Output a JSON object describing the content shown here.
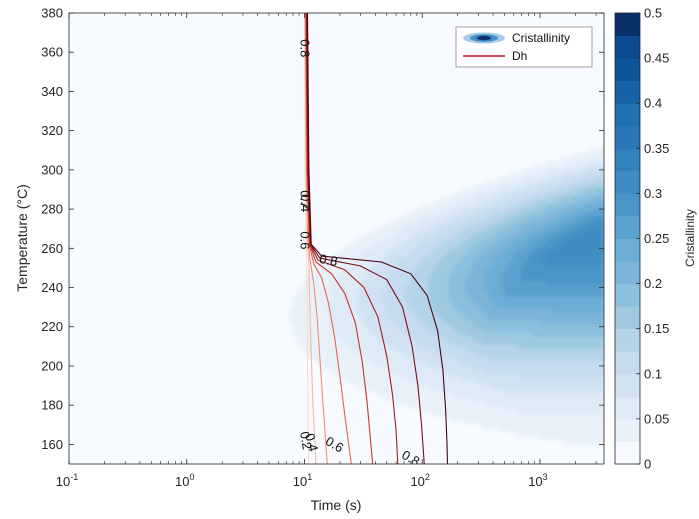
{
  "chart_data": {
    "type": "heatmap",
    "title": "",
    "xlabel": "Time (s)",
    "ylabel": "Temperature (°C)",
    "x_scale": "log",
    "xlim": [
      0.1,
      3500
    ],
    "ylim": [
      150,
      380
    ],
    "x_ticks": [
      {
        "value": 0.1,
        "base": "10",
        "exp": "-1"
      },
      {
        "value": 1,
        "base": "10",
        "exp": "0"
      },
      {
        "value": 10,
        "base": "10",
        "exp": "1"
      },
      {
        "value": 100,
        "base": "10",
        "exp": "2"
      },
      {
        "value": 1000,
        "base": "10",
        "exp": "3"
      }
    ],
    "y_ticks": [
      "160",
      "180",
      "200",
      "220",
      "240",
      "260",
      "280",
      "300",
      "320",
      "340",
      "360",
      "380"
    ],
    "grid": false,
    "legend": {
      "placement": "top-right",
      "entries": [
        {
          "name": "Cristallinity",
          "symbol": "filled-contour",
          "color": "#1f64a8"
        },
        {
          "name": "Dh",
          "symbol": "line",
          "color": "#b5121b"
        }
      ]
    },
    "colorbar": {
      "label": "Cristallinity",
      "range": [
        0,
        0.5
      ],
      "ticks": [
        "0",
        "0.05",
        "0.1",
        "0.15",
        "0.2",
        "0.25",
        "0.3",
        "0.35",
        "0.4",
        "0.45",
        "0.5"
      ],
      "levels": [
        0.025,
        0.05,
        0.075,
        0.1,
        0.125,
        0.15,
        0.175,
        0.2,
        0.225,
        0.25,
        0.275,
        0.3,
        0.325,
        0.35,
        0.375,
        0.4,
        0.425,
        0.45,
        0.475,
        0.5
      ],
      "colors": [
        "#f7fbff",
        "#e8f1fa",
        "#deebf7",
        "#d0e2f2",
        "#c6dbef",
        "#b5d4e9",
        "#9ecae1",
        "#8bbfdc",
        "#7cb5d8",
        "#6aaed6",
        "#5aa1cf",
        "#4a95c8",
        "#3f8dc4",
        "#3282bd",
        "#2a76b6",
        "#2171b5",
        "#1763a9",
        "#0f559c",
        "#0b4b8f",
        "#08306b"
      ]
    },
    "cristallinity_field": {
      "description_values": "peak cristallinity ~0.32 near T=270 C at t>=1000 s; nucleation front near t~2 s at T~210 C",
      "peak": {
        "time_s": 3000,
        "temperature_C": 268,
        "value": 0.32
      }
    },
    "dh_contours": {
      "levels": [
        "0.2",
        "0.4",
        "0.6",
        "0.8"
      ],
      "colors": [
        "#f8ddd2",
        "#f4b8a6",
        "#ee8d78",
        "#e1634f",
        "#c9372f",
        "#a51c22",
        "#7a0f18",
        "#4a0410"
      ],
      "curves": [
        {
          "level": 0.2,
          "points": [
            [
              10.0,
              380
            ],
            [
              10.1,
              300
            ],
            [
              10.3,
              262
            ],
            [
              10.4,
              252
            ],
            [
              10.5,
              240
            ],
            [
              10.6,
              220
            ],
            [
              10.6,
              200
            ],
            [
              10.7,
              180
            ],
            [
              10.8,
              160
            ],
            [
              10.9,
              150
            ]
          ]
        },
        {
          "level": 0.4,
          "points": [
            [
              10.1,
              380
            ],
            [
              10.3,
              300
            ],
            [
              10.6,
              262
            ],
            [
              10.9,
              252
            ],
            [
              11.0,
              240
            ],
            [
              11.2,
              220
            ],
            [
              11.5,
              200
            ],
            [
              11.8,
              180
            ],
            [
              12.3,
              160
            ],
            [
              12.5,
              150
            ]
          ]
        },
        {
          "level": 0.5,
          "points": [
            [
              10.2,
              380
            ],
            [
              10.4,
              300
            ],
            [
              10.8,
              262
            ],
            [
              11.3,
              252
            ],
            [
              12.0,
              242
            ],
            [
              12.8,
              225
            ],
            [
              13.5,
              205
            ],
            [
              14.2,
              185
            ],
            [
              15.0,
              165
            ],
            [
              15.6,
              150
            ]
          ]
        },
        {
          "level": 0.6,
          "points": [
            [
              10.3,
              380
            ],
            [
              10.5,
              300
            ],
            [
              11.0,
              262
            ],
            [
              12.0,
              252
            ],
            [
              14.0,
              245
            ],
            [
              16.0,
              232
            ],
            [
              18.0,
              215
            ],
            [
              20.0,
              195
            ],
            [
              22.0,
              175
            ],
            [
              24.0,
              158
            ],
            [
              25.0,
              150
            ]
          ]
        },
        {
          "level": 0.65,
          "points": [
            [
              10.3,
              380
            ],
            [
              10.6,
              300
            ],
            [
              11.1,
              262
            ],
            [
              12.5,
              253
            ],
            [
              17.0,
              247
            ],
            [
              22.0,
              237
            ],
            [
              27.0,
              222
            ],
            [
              31.0,
              202
            ],
            [
              34.0,
              182
            ],
            [
              36.0,
              165
            ],
            [
              38.0,
              150
            ]
          ]
        },
        {
          "level": 0.7,
          "points": [
            [
              10.4,
              380
            ],
            [
              10.7,
              300
            ],
            [
              11.2,
              262
            ],
            [
              13.0,
              254
            ],
            [
              22.0,
              249
            ],
            [
              32.0,
              240
            ],
            [
              42.0,
              225
            ],
            [
              50.0,
              205
            ],
            [
              56.0,
              185
            ],
            [
              60.0,
              167
            ],
            [
              62.0,
              150
            ]
          ]
        },
        {
          "level": 0.75,
          "points": [
            [
              10.5,
              380
            ],
            [
              10.8,
              300
            ],
            [
              11.3,
              262
            ],
            [
              13.5,
              255
            ],
            [
              30.0,
              251
            ],
            [
              50.0,
              244
            ],
            [
              68.0,
              230
            ],
            [
              82.0,
              210
            ],
            [
              92.0,
              190
            ],
            [
              98.0,
              172
            ],
            [
              102.0,
              158
            ],
            [
              104.0,
              150
            ]
          ]
        },
        {
          "level": 0.8,
          "points": [
            [
              10.6,
              380
            ],
            [
              10.9,
              300
            ],
            [
              11.4,
              262
            ],
            [
              14.0,
              256
            ],
            [
              45.0,
              253
            ],
            [
              80.0,
              247
            ],
            [
              110.0,
              236
            ],
            [
              135.0,
              218
            ],
            [
              150.0,
              198
            ],
            [
              158.0,
              178
            ],
            [
              162.0,
              162
            ],
            [
              164.0,
              150
            ]
          ]
        }
      ],
      "labels": [
        {
          "text": "0.8",
          "time_s": 10.1,
          "temperature_C": 362,
          "angle": 90
        },
        {
          "text": "0.7",
          "time_s": 10.15,
          "temperature_C": 285,
          "angle": 90
        },
        {
          "text": "0.4",
          "time_s": 10.2,
          "temperature_C": 283,
          "angle": 90
        },
        {
          "text": "0.6",
          "time_s": 10.1,
          "temperature_C": 264,
          "angle": 90
        },
        {
          "text": "0.8",
          "time_s": 16.0,
          "temperature_C": 254,
          "angle": 10
        },
        {
          "text": "0.2",
          "time_s": 10.3,
          "temperature_C": 162,
          "angle": 80
        },
        {
          "text": "0.4",
          "time_s": 11.5,
          "temperature_C": 161,
          "angle": 75
        },
        {
          "text": "0.6",
          "time_s": 18.0,
          "temperature_C": 160,
          "angle": 30
        },
        {
          "text": "0.8",
          "time_s": 80.0,
          "temperature_C": 153,
          "angle": 30
        }
      ]
    }
  }
}
